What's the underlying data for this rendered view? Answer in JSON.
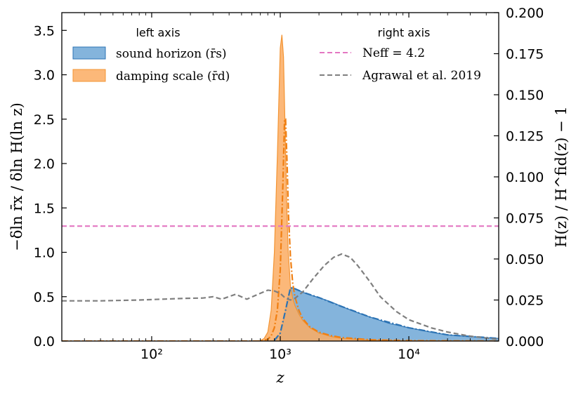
{
  "chart_data": {
    "type": "area",
    "x_scale": "log",
    "xlim": [
      20,
      50000
    ],
    "ylim_left": [
      0,
      3.7
    ],
    "ylim_right": [
      0,
      0.2
    ],
    "xlabel": "z",
    "ylabel_left": "−δln r̄x / δln H(ln z)",
    "ylabel_right": "H(z) / H^fid(z) − 1",
    "x_ticks": [
      {
        "value": 100,
        "label": "10²"
      },
      {
        "value": 1000,
        "label": "10³"
      },
      {
        "value": 10000,
        "label": "10⁴"
      }
    ],
    "y_ticks_left": [
      {
        "value": 0.0,
        "label": "0.0"
      },
      {
        "value": 0.5,
        "label": "0.5"
      },
      {
        "value": 1.0,
        "label": "1.0"
      },
      {
        "value": 1.5,
        "label": "1.5"
      },
      {
        "value": 2.0,
        "label": "2.0"
      },
      {
        "value": 2.5,
        "label": "2.5"
      },
      {
        "value": 3.0,
        "label": "3.0"
      },
      {
        "value": 3.5,
        "label": "3.5"
      }
    ],
    "y_ticks_right": [
      {
        "value": 0.0,
        "label": "0.000"
      },
      {
        "value": 0.025,
        "label": "0.025"
      },
      {
        "value": 0.05,
        "label": "0.050"
      },
      {
        "value": 0.075,
        "label": "0.075"
      },
      {
        "value": 0.1,
        "label": "0.100"
      },
      {
        "value": 0.125,
        "label": "0.125"
      },
      {
        "value": 0.15,
        "label": "0.150"
      },
      {
        "value": 0.175,
        "label": "0.175"
      },
      {
        "value": 0.2,
        "label": "0.200"
      }
    ],
    "legend_left": {
      "title": "left axis",
      "position": "top-left",
      "entries": [
        {
          "label": "sound horizon (r̄s)",
          "series": "sound_horizon"
        },
        {
          "label": "damping scale (r̄d)",
          "series": "damping_scale"
        }
      ]
    },
    "legend_right": {
      "title": "right axis",
      "position": "top-right",
      "entries": [
        {
          "label": "Neff = 4.2",
          "series": "neff"
        },
        {
          "label": "Agrawal et al. 2019",
          "series": "agrawal"
        }
      ]
    },
    "series": [
      {
        "name": "sound_horizon",
        "axis": "left",
        "style": "filled",
        "fill": "#5b9bd0",
        "stroke": "#2c73b4",
        "x": [
          20,
          700,
          800,
          900,
          950,
          1000,
          1050,
          1100,
          1150,
          1200,
          1250,
          1300,
          1400,
          1500,
          1700,
          2000,
          2500,
          3000,
          4000,
          5000,
          7000,
          10000,
          15000,
          20000,
          30000,
          50000
        ],
        "values": [
          0,
          0,
          0.001,
          0.008,
          0.03,
          0.09,
          0.2,
          0.35,
          0.5,
          0.6,
          0.6,
          0.59,
          0.57,
          0.55,
          0.52,
          0.49,
          0.44,
          0.39,
          0.32,
          0.27,
          0.2,
          0.15,
          0.1,
          0.07,
          0.05,
          0.03
        ]
      },
      {
        "name": "damping_scale",
        "axis": "left",
        "style": "filled",
        "fill": "#fbac61",
        "stroke": "#f39433",
        "x": [
          20,
          600,
          700,
          750,
          800,
          850,
          900,
          950,
          1000,
          1030,
          1060,
          1090,
          1120,
          1150,
          1200,
          1250,
          1300,
          1400,
          1500,
          1700,
          2000,
          2500,
          3000,
          5000,
          10000,
          50000
        ],
        "values": [
          0,
          0,
          0.005,
          0.03,
          0.1,
          0.35,
          1.0,
          2.1,
          3.3,
          3.45,
          3.2,
          2.4,
          1.6,
          1.05,
          0.62,
          0.48,
          0.4,
          0.3,
          0.23,
          0.15,
          0.09,
          0.05,
          0.03,
          0.01,
          0.003,
          0
        ]
      },
      {
        "name": "damping_scale_dashdot",
        "axis": "left",
        "style": "dashdot",
        "stroke": "#f07f12",
        "x": [
          20,
          700,
          800,
          850,
          900,
          950,
          1000,
          1050,
          1080,
          1100,
          1130,
          1160,
          1200,
          1250,
          1300,
          1400,
          1500,
          1700,
          2000,
          2500,
          3000,
          5000,
          10000,
          50000
        ],
        "values": [
          0,
          0,
          0.02,
          0.06,
          0.15,
          0.35,
          0.8,
          1.8,
          2.5,
          2.5,
          2.0,
          1.4,
          0.95,
          0.65,
          0.5,
          0.34,
          0.25,
          0.16,
          0.1,
          0.06,
          0.04,
          0.015,
          0.005,
          0
        ]
      },
      {
        "name": "sound_horizon_dashdot",
        "axis": "left",
        "style": "dashdot",
        "stroke": "#2c73b4",
        "x": [
          900,
          1000,
          1100,
          1200,
          1300,
          1500,
          2000,
          3000,
          5000,
          10000,
          20000,
          50000
        ],
        "values": [
          0.008,
          0.09,
          0.35,
          0.6,
          0.59,
          0.55,
          0.49,
          0.39,
          0.27,
          0.15,
          0.07,
          0.03
        ]
      },
      {
        "name": "neff",
        "axis": "right",
        "style": "dashed",
        "stroke": "#e377c2",
        "x": [
          20,
          50000
        ],
        "values": [
          0.07,
          0.07
        ]
      },
      {
        "name": "agrawal",
        "axis": "right",
        "style": "dashed",
        "stroke": "#7f7f7f",
        "x": [
          20,
          40,
          80,
          120,
          180,
          250,
          300,
          350,
          450,
          550,
          650,
          800,
          900,
          1000,
          1100,
          1200,
          1300,
          1500,
          1800,
          2200,
          2600,
          3000,
          3500,
          4000,
          5000,
          6000,
          8000,
          10000,
          15000,
          20000,
          30000,
          50000
        ],
        "values": [
          0.0245,
          0.0245,
          0.025,
          0.0255,
          0.026,
          0.0262,
          0.027,
          0.0255,
          0.0285,
          0.0255,
          0.028,
          0.031,
          0.0305,
          0.029,
          0.026,
          0.025,
          0.026,
          0.03,
          0.038,
          0.046,
          0.051,
          0.053,
          0.051,
          0.046,
          0.036,
          0.027,
          0.018,
          0.013,
          0.008,
          0.0055,
          0.003,
          0.001
        ]
      }
    ]
  }
}
